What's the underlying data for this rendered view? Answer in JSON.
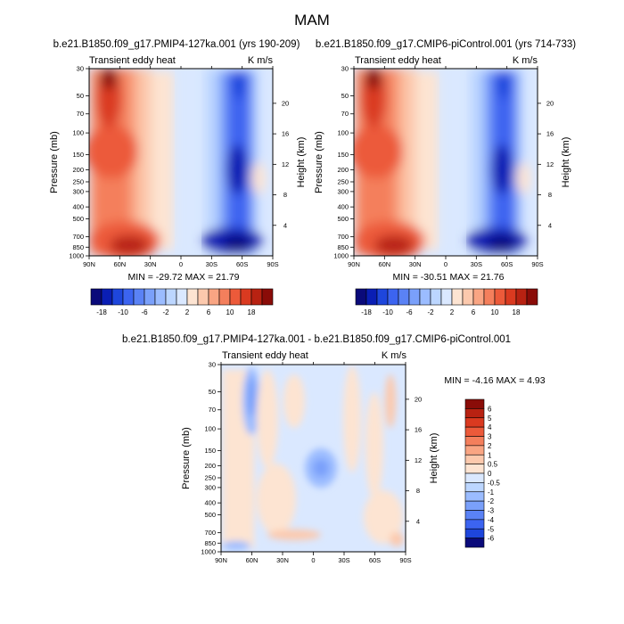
{
  "page_title": "MAM",
  "chart_data": [
    {
      "type": "heatmap",
      "id": "p1",
      "title": "b.e21.B1850.f09_g17.PMIP4-127ka.001 (yrs 190-209)",
      "left_label": "Transient eddy heat",
      "right_label": "K m/s",
      "ylabel": "Pressure (mb)",
      "y2label": "Height (km)",
      "x_ticks": [
        "90N",
        "60N",
        "30N",
        "0",
        "30S",
        "60S",
        "90S"
      ],
      "y_ticks": [
        "30",
        "50",
        "70",
        "100",
        "150",
        "200",
        "250",
        "300",
        "400",
        "500",
        "700",
        "850",
        "1000"
      ],
      "y2_ticks": [
        "20",
        "16",
        "12",
        "8",
        "4"
      ],
      "stats": "MIN = -29.72   MAX =  21.79",
      "colorbar_labels": [
        "-18",
        "-10",
        "-6",
        "-2",
        "2",
        "6",
        "10",
        "18"
      ]
    },
    {
      "type": "heatmap",
      "id": "p2",
      "title": "b.e21.B1850.f09_g17.CMIP6-piControl.001 (yrs 714-733)",
      "left_label": "Transient eddy heat",
      "right_label": "K m/s",
      "ylabel": "Pressure (mb)",
      "y2label": "Height (km)",
      "x_ticks": [
        "90N",
        "60N",
        "30N",
        "0",
        "30S",
        "60S",
        "90S"
      ],
      "y_ticks": [
        "30",
        "50",
        "70",
        "100",
        "150",
        "200",
        "250",
        "300",
        "400",
        "500",
        "700",
        "850",
        "1000"
      ],
      "y2_ticks": [
        "20",
        "16",
        "12",
        "8",
        "4"
      ],
      "stats": "MIN = -30.51   MAX =  21.76",
      "colorbar_labels": [
        "-18",
        "-10",
        "-6",
        "-2",
        "2",
        "6",
        "10",
        "18"
      ]
    },
    {
      "type": "heatmap",
      "id": "p3",
      "title": "b.e21.B1850.f09_g17.PMIP4-127ka.001 - b.e21.B1850.f09_g17.CMIP6-piControl.001",
      "left_label": "Transient eddy heat",
      "right_label": "K m/s",
      "ylabel": "Pressure (mb)",
      "y2label": "Height (km)",
      "x_ticks": [
        "90N",
        "60N",
        "30N",
        "0",
        "30S",
        "60S",
        "90S"
      ],
      "y_ticks": [
        "30",
        "50",
        "70",
        "100",
        "150",
        "200",
        "250",
        "300",
        "400",
        "500",
        "700",
        "850",
        "1000"
      ],
      "y2_ticks": [
        "20",
        "16",
        "12",
        "8",
        "4"
      ],
      "stats": "MIN =  -4.16   MAX =   4.93",
      "colorbar_labels": [
        "6",
        "5",
        "4",
        "3",
        "2",
        "1",
        "0.5",
        "0",
        "-0.5",
        "-1",
        "-2",
        "-3",
        "-4",
        "-5",
        "-6"
      ]
    }
  ],
  "colors": {
    "palette": [
      "#0a0a7a",
      "#0a1eb4",
      "#1e46dc",
      "#3c64f0",
      "#5a82f5",
      "#7aa0fa",
      "#9bbcff",
      "#bcd6ff",
      "#dae8ff",
      "#fde4d2",
      "#fcc9ad",
      "#f9a583",
      "#f47f5c",
      "#ec5a3a",
      "#da3a20",
      "#b82212",
      "#8a0c08"
    ]
  }
}
